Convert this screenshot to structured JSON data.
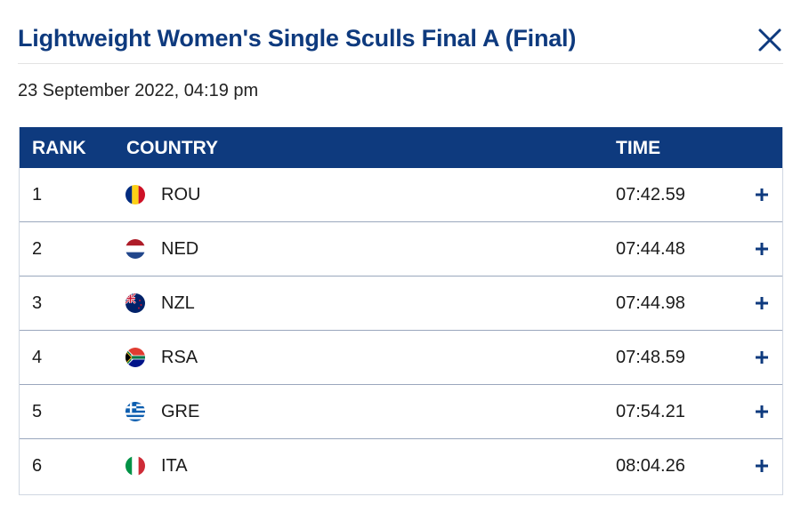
{
  "header": {
    "title": "Lightweight Women's Single Sculls Final A (Final)",
    "close_icon": "close-icon"
  },
  "date": "23 September 2022, 04:19 pm",
  "table": {
    "columns": {
      "rank": "RANK",
      "country": "COUNTRY",
      "time": "TIME"
    },
    "rows": [
      {
        "rank": "1",
        "country": "ROU",
        "time": "07:42.59",
        "flag_icon": "romania-flag-icon"
      },
      {
        "rank": "2",
        "country": "NED",
        "time": "07:44.48",
        "flag_icon": "netherlands-flag-icon"
      },
      {
        "rank": "3",
        "country": "NZL",
        "time": "07:44.98",
        "flag_icon": "new-zealand-flag-icon"
      },
      {
        "rank": "4",
        "country": "RSA",
        "time": "07:48.59",
        "flag_icon": "south-africa-flag-icon"
      },
      {
        "rank": "5",
        "country": "GRE",
        "time": "07:54.21",
        "flag_icon": "greece-flag-icon"
      },
      {
        "rank": "6",
        "country": "ITA",
        "time": "08:04.26",
        "flag_icon": "italy-flag-icon"
      }
    ],
    "expand_icon": "plus-icon"
  },
  "colors": {
    "brand_navy": "#0e3a7e",
    "row_divider": "#9aa7bd",
    "text": "#1a1a1a"
  }
}
